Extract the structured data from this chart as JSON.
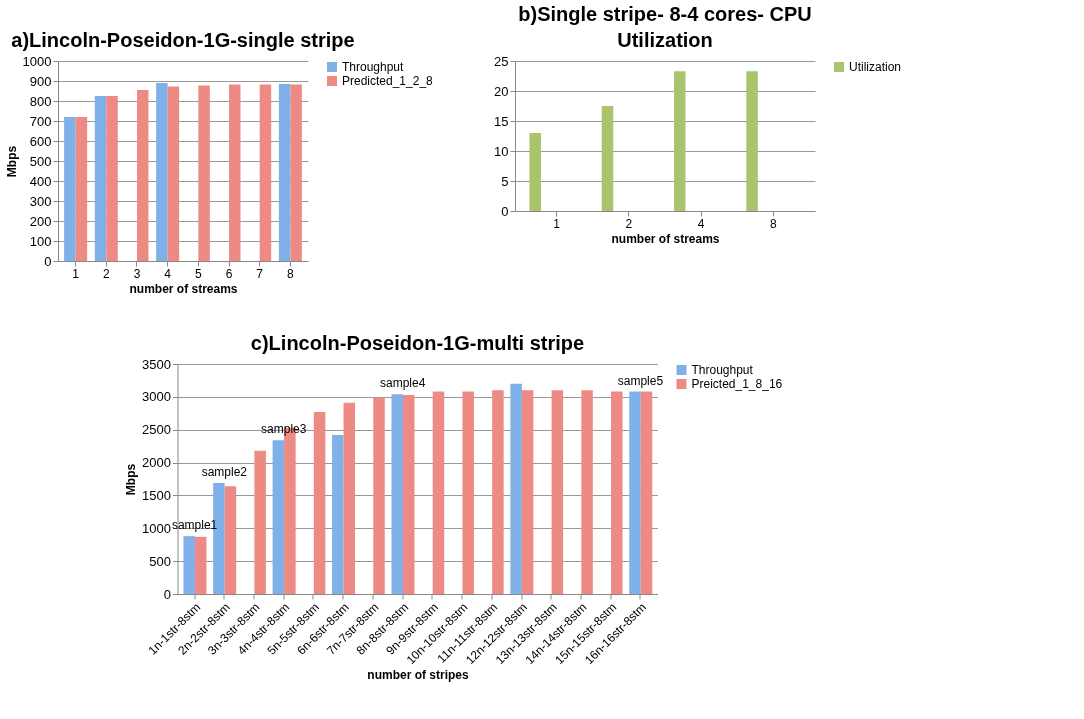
{
  "chart_data": [
    {
      "type": "bar",
      "title": "a)Lincoln-Poseidon-1G-single stripe",
      "xlabel": "number of streams",
      "ylabel": "Mbps",
      "categories": [
        "1",
        "2",
        "3",
        "4",
        "5",
        "6",
        "7",
        "8"
      ],
      "series": [
        {
          "name": "Throughput",
          "color": "#7fb0e8",
          "values": [
            720,
            825,
            null,
            890,
            null,
            null,
            null,
            885
          ]
        },
        {
          "name": "Predicted_1_2_8",
          "color": "#ee8a84",
          "values": [
            720,
            825,
            855,
            872,
            878,
            883,
            883,
            883
          ]
        }
      ],
      "ylim": [
        0,
        1000
      ],
      "yticks": [
        0,
        100,
        200,
        300,
        400,
        500,
        600,
        700,
        800,
        900,
        1000
      ],
      "grid": "y",
      "legend": "right"
    },
    {
      "type": "bar",
      "title": "b)Single stripe- 8-4 cores- CPU Utilization",
      "xlabel": "number of streams",
      "categories": [
        "1",
        "2",
        "4",
        "8"
      ],
      "series": [
        {
          "name": "Utilization",
          "color": "#a9c46c",
          "values": [
            13,
            17.5,
            23.3,
            23.3
          ]
        }
      ],
      "ylim": [
        0,
        25
      ],
      "yticks": [
        0,
        5,
        10,
        15,
        20,
        25
      ],
      "grid": "y",
      "legend": "right"
    },
    {
      "type": "bar",
      "title": "c)Lincoln-Poseidon-1G-multi stripe",
      "xlabel": "number of stripes",
      "ylabel": "Mbps",
      "categories": [
        "1n-1str-8stm",
        "2n-2str-8stm",
        "3n-3str-8stm",
        "4n-4str-8stm",
        "5n-5str-8stm",
        "6n-6str-8stm",
        "7n-7str-8stm",
        "8n-8str-8stm",
        "9n-9str-8stm",
        "10n-10str-8stm",
        "11n-11str-8stm",
        "12n-12str-8stm",
        "13n-13str-8stm",
        "14n-14str-8stm",
        "15n-15str-8stm",
        "16n-16str-8stm"
      ],
      "series": [
        {
          "name": "Throughput",
          "color": "#7fb0e8",
          "values": [
            880,
            1690,
            null,
            2340,
            null,
            2420,
            null,
            3040,
            null,
            null,
            null,
            3200,
            null,
            null,
            null,
            3080
          ]
        },
        {
          "name": "Preicted_1_8_16",
          "color": "#ee8a84",
          "values": [
            870,
            1640,
            2180,
            2530,
            2770,
            2910,
            2990,
            3030,
            3080,
            3080,
            3100,
            3100,
            3100,
            3100,
            3080,
            3080
          ]
        }
      ],
      "annotations": [
        {
          "text": "sample1",
          "x": "1n-1str-8stm",
          "y": 880
        },
        {
          "text": "sample2",
          "x": "2n-2str-8stm",
          "y": 1690
        },
        {
          "text": "sample3",
          "x": "4n-4str-8stm",
          "y": 2340
        },
        {
          "text": "sample4",
          "x": "8n-8str-8stm",
          "y": 3040
        },
        {
          "text": "sample5",
          "x": "16n-16str-8stm",
          "y": 3080
        }
      ],
      "ylim": [
        0,
        3500
      ],
      "yticks": [
        0,
        500,
        1000,
        1500,
        2000,
        2500,
        3000,
        3500
      ],
      "grid": "y",
      "legend": "right"
    }
  ]
}
